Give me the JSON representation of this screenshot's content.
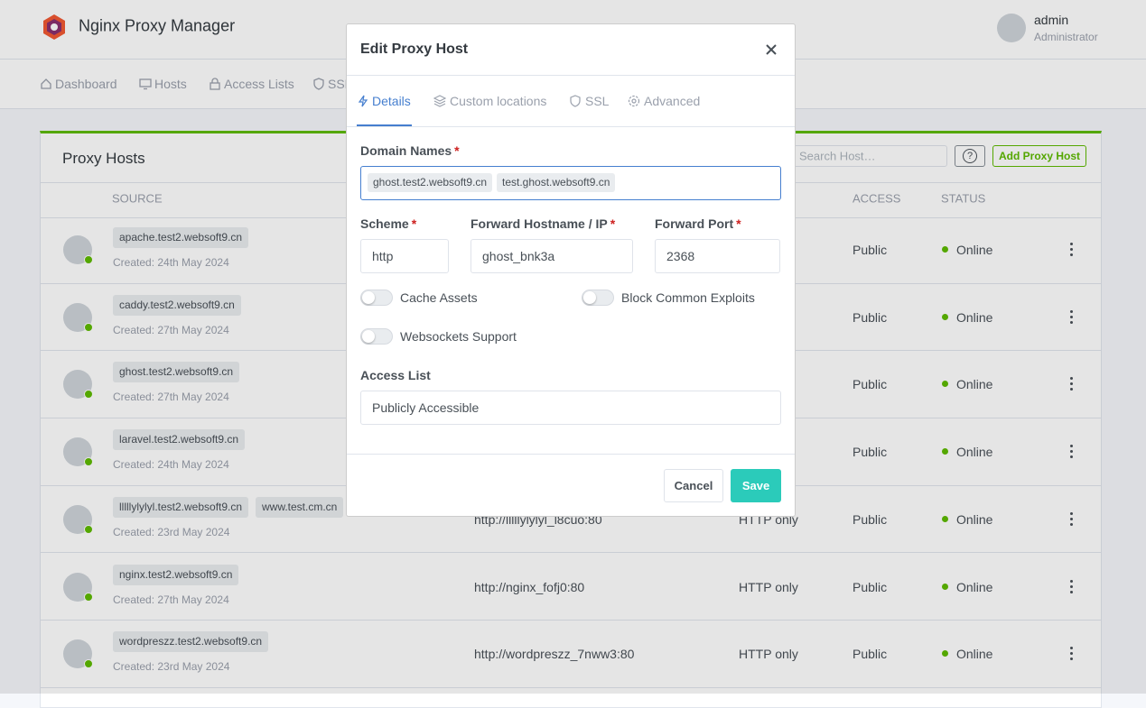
{
  "header": {
    "brand": "Nginx Proxy Manager",
    "user_name": "admin",
    "user_role": "Administrator"
  },
  "nav": [
    "Dashboard",
    "Hosts",
    "Access Lists",
    "SSL"
  ],
  "card": {
    "title": "Proxy Hosts",
    "search_placeholder": "Search Host…",
    "help_button": "?",
    "add_button": "Add Proxy Host",
    "columns": [
      "SOURCE",
      "ACCESS",
      "STATUS"
    ],
    "rows": [
      {
        "domains": [
          "apache.test2.websoft9.cn"
        ],
        "created": "Created: 24th May 2024",
        "access": "Public",
        "status": "Online"
      },
      {
        "domains": [
          "caddy.test2.websoft9.cn"
        ],
        "created": "Created: 27th May 2024",
        "access": "Public",
        "status": "Online"
      },
      {
        "domains": [
          "ghost.test2.websoft9.cn"
        ],
        "created": "Created: 27th May 2024",
        "access": "Public",
        "status": "Online"
      },
      {
        "domains": [
          "laravel.test2.websoft9.cn"
        ],
        "created": "Created: 24th May 2024",
        "access": "Public",
        "status": "Online"
      },
      {
        "domains": [
          "lllllylylyl.test2.websoft9.cn",
          "www.test.cm.cn"
        ],
        "created": "Created: 23rd May 2024",
        "destination": "http://lllllylylyl_l8cuo:80",
        "ssl": "HTTP only",
        "access": "Public",
        "status": "Online"
      },
      {
        "domains": [
          "nginx.test2.websoft9.cn"
        ],
        "created": "Created: 27th May 2024",
        "destination": "http://nginx_fofj0:80",
        "ssl": "HTTP only",
        "access": "Public",
        "status": "Online"
      },
      {
        "domains": [
          "wordpreszz.test2.websoft9.cn"
        ],
        "created": "Created: 23rd May 2024",
        "destination": "http://wordpreszz_7nww3:80",
        "ssl": "HTTP only",
        "access": "Public",
        "status": "Online"
      }
    ]
  },
  "modal": {
    "title": "Edit Proxy Host",
    "tabs": [
      "Details",
      "Custom locations",
      "SSL",
      "Advanced"
    ],
    "required_mark": "*",
    "domain_label": "Domain Names",
    "domains": [
      "ghost.test2.websoft9.cn",
      "test.ghost.websoft9.cn"
    ],
    "scheme_label": "Scheme",
    "scheme": "http",
    "hostname_label": "Forward Hostname / IP",
    "hostname": "ghost_bnk3a",
    "port_label": "Forward Port",
    "port": "2368",
    "toggles": [
      "Cache Assets",
      "Block Common Exploits",
      "Websockets Support"
    ],
    "access_label": "Access List",
    "access_value": "Publicly Accessible",
    "cancel": "Cancel",
    "save": "Save"
  }
}
